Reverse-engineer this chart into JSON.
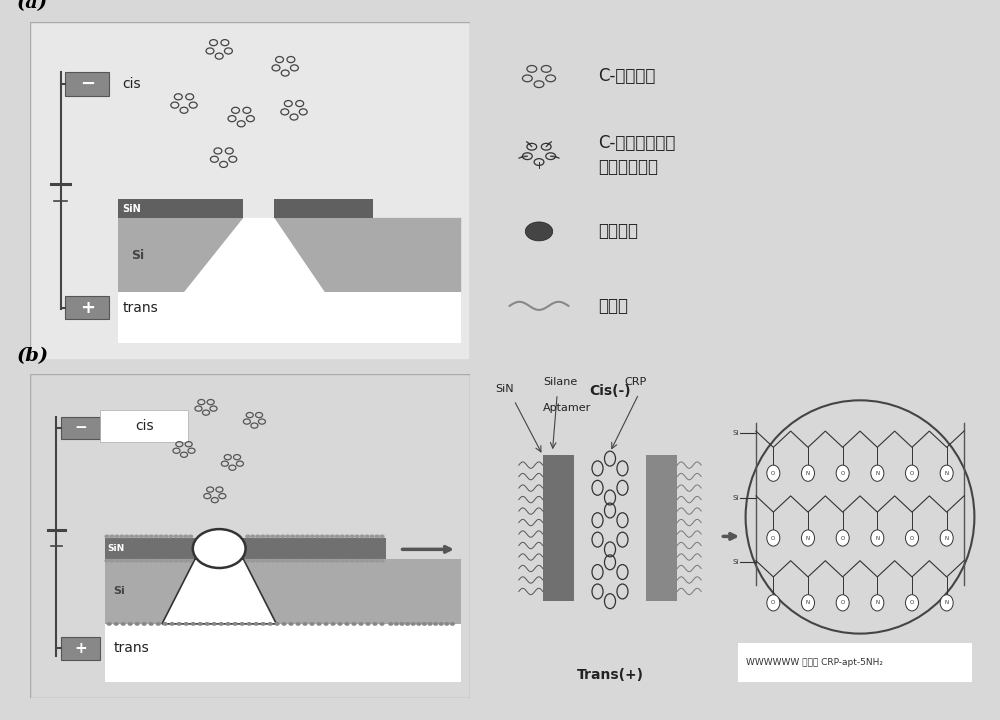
{
  "bg_color": "#d8d8d8",
  "panel_bg": "#e8e8e8",
  "sin_dark": "#555555",
  "si_gray": "#999999",
  "si_light": "#bbbbbb",
  "electrode_color": "#777777",
  "label_a": "(a)",
  "label_b": "(b)",
  "legend_crp": "C-反应蛋白",
  "legend_complex1": "C-反应蛋白与适",
  "legend_complex2": "配体的结合体",
  "legend_silane": "硫烷试剂",
  "legend_aptamer": "适配体",
  "cis_label": "Cis(-)",
  "trans_label": "Trans(+)",
  "aptamer_lbl": "Aptamer",
  "silane_lbl": "Silane",
  "crp_lbl": "CRP",
  "sin_lbl": "SiN",
  "aptamer_caption": "WWWWWW 适配体 CRP-apt-5NH₂"
}
